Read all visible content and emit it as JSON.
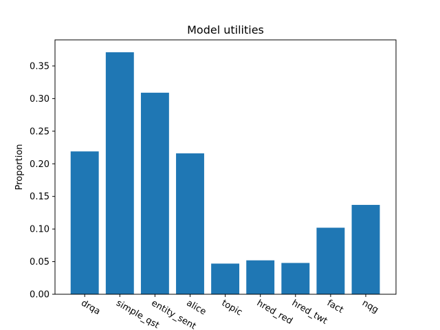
{
  "chart_data": {
    "type": "bar",
    "title": "Model utilities",
    "xlabel": "",
    "ylabel": "Proportion",
    "categories": [
      "drqa",
      "simple_qst",
      "entity_sent",
      "alice",
      "topic",
      "hred_red",
      "hred_twt",
      "fact",
      "nqg"
    ],
    "values": [
      0.219,
      0.371,
      0.309,
      0.216,
      0.047,
      0.052,
      0.048,
      0.102,
      0.137
    ],
    "ylim": [
      0,
      0.39
    ],
    "yticks": [
      0.0,
      0.05,
      0.1,
      0.15,
      0.2,
      0.25,
      0.3,
      0.35
    ],
    "ytick_labels": [
      "0.00",
      "0.05",
      "0.10",
      "0.15",
      "0.20",
      "0.25",
      "0.30",
      "0.35"
    ],
    "bar_color": "#1f77b4",
    "grid": false,
    "legend": "none"
  }
}
